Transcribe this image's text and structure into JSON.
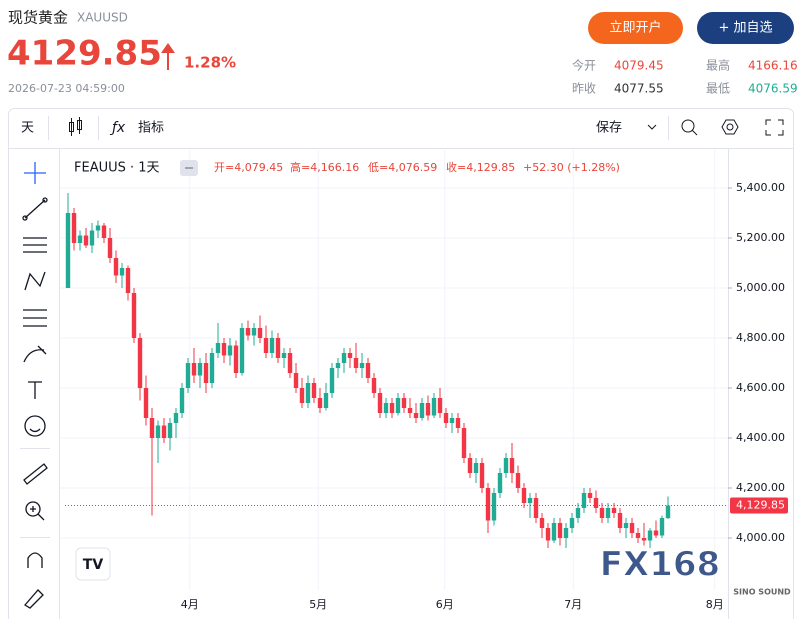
{
  "header": {
    "title": "现货黄金",
    "symbol": "XAUUSD",
    "price": "4129.85",
    "change_pct": "1.28%",
    "timestamp": "2026-07-23 04:59:00",
    "buttons": [
      "立即开户",
      "+ 加自选"
    ],
    "stats": [
      {
        "label": "今开",
        "value": "4079.45"
      },
      {
        "label": "最高",
        "value": "4166.16"
      },
      {
        "label": "昨收",
        "value": "4077.55"
      },
      {
        "label": "最低",
        "value": "4076.59"
      }
    ]
  },
  "toolbar": {
    "interval": "天",
    "indicators": "指标",
    "save": "保存"
  },
  "chart_data": {
    "type": "candlestick",
    "legend": {
      "symbol": "FEAUUS · 1天",
      "open": "开=4,079.45",
      "high": "高=4,166.16",
      "low": "低=4,076.59",
      "close": "收=4,129.85",
      "change": "+52.30 (+1.28%)"
    },
    "up_color": "#22ab94",
    "down_color": "#f23645",
    "candles": [
      [
        5000,
        5380,
        5000,
        5300
      ],
      [
        5300,
        5320,
        5150,
        5180
      ],
      [
        5180,
        5230,
        5150,
        5210
      ],
      [
        5210,
        5240,
        5160,
        5170
      ],
      [
        5170,
        5260,
        5140,
        5230
      ],
      [
        5230,
        5270,
        5200,
        5250
      ],
      [
        5250,
        5260,
        5180,
        5200
      ],
      [
        5200,
        5240,
        5100,
        5120
      ],
      [
        5120,
        5150,
        5020,
        5050
      ],
      [
        5050,
        5100,
        5000,
        5080
      ],
      [
        5080,
        5090,
        4950,
        4980
      ],
      [
        4980,
        5000,
        4780,
        4800
      ],
      [
        4800,
        4820,
        4550,
        4600
      ],
      [
        4600,
        4650,
        4450,
        4480
      ],
      [
        4480,
        4520,
        4090,
        4400
      ],
      [
        4400,
        4470,
        4300,
        4450
      ],
      [
        4450,
        4480,
        4380,
        4400
      ],
      [
        4400,
        4480,
        4350,
        4460
      ],
      [
        4460,
        4520,
        4400,
        4500
      ],
      [
        4500,
        4620,
        4480,
        4600
      ],
      [
        4600,
        4720,
        4580,
        4700
      ],
      [
        4700,
        4760,
        4620,
        4650
      ],
      [
        4650,
        4720,
        4600,
        4700
      ],
      [
        4700,
        4740,
        4580,
        4620
      ],
      [
        4620,
        4760,
        4600,
        4740
      ],
      [
        4740,
        4860,
        4720,
        4780
      ],
      [
        4780,
        4800,
        4700,
        4730
      ],
      [
        4730,
        4800,
        4690,
        4770
      ],
      [
        4770,
        4790,
        4640,
        4660
      ],
      [
        4660,
        4860,
        4650,
        4840
      ],
      [
        4840,
        4870,
        4790,
        4810
      ],
      [
        4810,
        4860,
        4770,
        4840
      ],
      [
        4840,
        4890,
        4780,
        4800
      ],
      [
        4800,
        4850,
        4720,
        4740
      ],
      [
        4740,
        4830,
        4720,
        4800
      ],
      [
        4800,
        4820,
        4700,
        4720
      ],
      [
        4720,
        4760,
        4680,
        4740
      ],
      [
        4740,
        4760,
        4640,
        4660
      ],
      [
        4660,
        4700,
        4580,
        4600
      ],
      [
        4600,
        4640,
        4520,
        4540
      ],
      [
        4540,
        4650,
        4520,
        4620
      ],
      [
        4620,
        4640,
        4540,
        4560
      ],
      [
        4560,
        4600,
        4500,
        4520
      ],
      [
        4520,
        4620,
        4510,
        4580
      ],
      [
        4580,
        4700,
        4560,
        4680
      ],
      [
        4680,
        4720,
        4640,
        4700
      ],
      [
        4700,
        4760,
        4660,
        4740
      ],
      [
        4740,
        4760,
        4680,
        4720
      ],
      [
        4720,
        4780,
        4660,
        4680
      ],
      [
        4680,
        4740,
        4640,
        4700
      ],
      [
        4700,
        4720,
        4620,
        4640
      ],
      [
        4640,
        4660,
        4560,
        4580
      ],
      [
        4580,
        4600,
        4480,
        4500
      ],
      [
        4500,
        4560,
        4480,
        4540
      ],
      [
        4540,
        4560,
        4480,
        4500
      ],
      [
        4500,
        4580,
        4490,
        4560
      ],
      [
        4560,
        4580,
        4500,
        4520
      ],
      [
        4520,
        4560,
        4480,
        4500
      ],
      [
        4500,
        4540,
        4460,
        4480
      ],
      [
        4480,
        4560,
        4470,
        4540
      ],
      [
        4540,
        4570,
        4470,
        4490
      ],
      [
        4490,
        4580,
        4480,
        4560
      ],
      [
        4560,
        4600,
        4480,
        4500
      ],
      [
        4500,
        4520,
        4440,
        4460
      ],
      [
        4460,
        4500,
        4420,
        4480
      ],
      [
        4480,
        4500,
        4420,
        4440
      ],
      [
        4440,
        4460,
        4300,
        4320
      ],
      [
        4320,
        4340,
        4240,
        4260
      ],
      [
        4260,
        4320,
        4220,
        4300
      ],
      [
        4300,
        4320,
        4180,
        4200
      ],
      [
        4200,
        4220,
        4020,
        4070
      ],
      [
        4070,
        4200,
        4050,
        4180
      ],
      [
        4180,
        4280,
        4160,
        4260
      ],
      [
        4260,
        4340,
        4240,
        4320
      ],
      [
        4320,
        4380,
        4220,
        4260
      ],
      [
        4260,
        4290,
        4180,
        4200
      ],
      [
        4200,
        4220,
        4120,
        4140
      ],
      [
        4140,
        4180,
        4080,
        4160
      ],
      [
        4160,
        4180,
        4060,
        4080
      ],
      [
        4080,
        4100,
        4000,
        4040
      ],
      [
        4040,
        4060,
        3960,
        3990
      ],
      [
        3990,
        4080,
        3980,
        4060
      ],
      [
        4060,
        4080,
        3970,
        4000
      ],
      [
        4000,
        4060,
        3960,
        4040
      ],
      [
        4040,
        4100,
        4020,
        4080
      ],
      [
        4080,
        4140,
        4060,
        4120
      ],
      [
        4120,
        4200,
        4100,
        4180
      ],
      [
        4180,
        4200,
        4140,
        4160
      ],
      [
        4160,
        4190,
        4100,
        4120
      ],
      [
        4120,
        4140,
        4060,
        4080
      ],
      [
        4080,
        4140,
        4060,
        4120
      ],
      [
        4120,
        4140,
        4080,
        4100
      ],
      [
        4100,
        4120,
        4020,
        4040
      ],
      [
        4040,
        4080,
        4000,
        4060
      ],
      [
        4060,
        4080,
        4000,
        4020
      ],
      [
        4020,
        4040,
        3980,
        4000
      ],
      [
        4000,
        4060,
        3970,
        3990
      ],
      [
        3990,
        4040,
        3960,
        4030
      ],
      [
        4030,
        4070,
        4000,
        4010
      ],
      [
        4010,
        4090,
        4000,
        4080
      ],
      [
        4079.45,
        4166.16,
        4076.59,
        4129.85
      ]
    ],
    "xlim": [
      -0.5,
      110
    ],
    "xticks": [
      {
        "value": 20.3,
        "label": "4月"
      },
      {
        "value": 41.7,
        "label": "5月"
      },
      {
        "value": 62.8,
        "label": "6月"
      },
      {
        "value": 84.2,
        "label": "7月"
      },
      {
        "value": 107.8,
        "label": "8月"
      }
    ],
    "ylim": [
      3792,
      5552
    ],
    "yticks": [
      {
        "value": 4000,
        "label": "4,000.00"
      },
      {
        "value": 4200,
        "label": "4,200.00"
      },
      {
        "value": 4400,
        "label": "4,400.00"
      },
      {
        "value": 4600,
        "label": "4,600.00"
      },
      {
        "value": 4800,
        "label": "4,800.00"
      },
      {
        "value": 5000,
        "label": "5,000.00"
      },
      {
        "value": 5200,
        "label": "5,200.00"
      },
      {
        "value": 5400,
        "label": "5,400.00"
      }
    ],
    "last_price": {
      "value": 4129.85,
      "label": "4,129.85"
    },
    "grid": true,
    "watermark": "FX168",
    "watermark_sub": "SINO SOUND"
  }
}
